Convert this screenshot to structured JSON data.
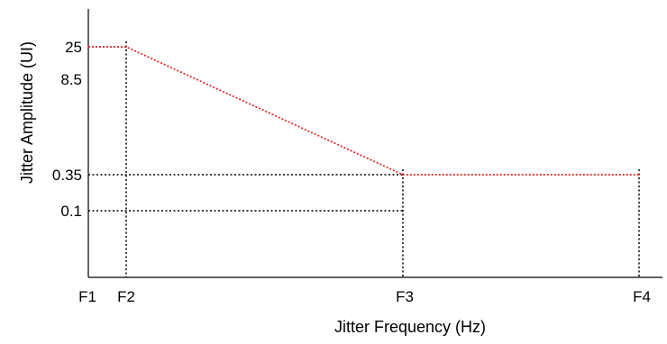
{
  "chart_data": {
    "type": "line",
    "title": "",
    "xlabel": "Jitter Frequency (Hz)",
    "ylabel": "Jitter Amplitude (UI)",
    "x_ticks": [
      "F1",
      "F2",
      "F3",
      "F4"
    ],
    "y_ticks": [
      "25",
      "8.5",
      "0.35",
      "0.1"
    ],
    "series": [
      {
        "x": [
          "F1",
          "F2",
          "F3",
          "F4"
        ],
        "y": [
          25,
          25,
          0.35,
          0.35
        ],
        "color": "#e02020",
        "style": "dotted"
      }
    ],
    "reference_lines": [
      {
        "from": [
          "F2",
          25
        ],
        "to": [
          "F2",
          "axis"
        ],
        "orientation": "vertical"
      },
      {
        "from": [
          "F3",
          0.35
        ],
        "to": [
          "F3",
          "axis"
        ],
        "orientation": "vertical"
      },
      {
        "from": [
          "F4",
          0.35
        ],
        "to": [
          "F4",
          "axis"
        ],
        "orientation": "vertical"
      },
      {
        "from": [
          "axis",
          0.35
        ],
        "to": [
          "F3",
          0.35
        ],
        "orientation": "horizontal"
      },
      {
        "from": [
          "axis",
          0.1
        ],
        "to": [
          "F3",
          0.1
        ],
        "orientation": "horizontal"
      }
    ],
    "grid": false,
    "legend": "none",
    "colors": {
      "curve": "#e02020",
      "reference": "#000000",
      "axis": "#000000"
    }
  }
}
